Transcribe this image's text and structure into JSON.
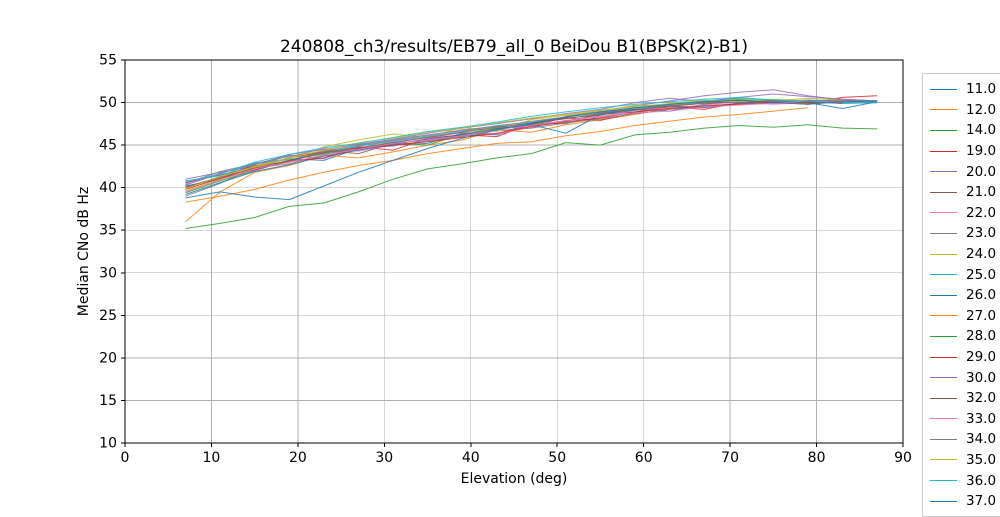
{
  "figure": {
    "background": "#ffffff",
    "grid_color": "#b0b0b0",
    "spine_color": "#000000"
  },
  "chart_data": {
    "type": "line",
    "title": "240808_ch3/results/EB79_all_0 BeiDou B1(BPSK(2)-B1)",
    "xlabel": "Elevation (deg)",
    "ylabel": "Median CNo dB Hz",
    "xlim": [
      0,
      90
    ],
    "ylim": [
      10,
      55
    ],
    "xticks": [
      0,
      10,
      20,
      30,
      40,
      50,
      60,
      70,
      80,
      90
    ],
    "yticks": [
      10,
      15,
      20,
      25,
      30,
      35,
      40,
      45,
      50,
      55
    ],
    "grid": true,
    "legend_position": "outside-right",
    "x": [
      7,
      11,
      15,
      19,
      23,
      27,
      31,
      35,
      39,
      43,
      47,
      51,
      55,
      59,
      63,
      67,
      71,
      75,
      79,
      83,
      87
    ],
    "series": [
      {
        "name": "11.0",
        "color": "#1f77b4",
        "values": [
          40.2,
          41.0,
          42.8,
          43.4,
          43.2,
          44.6,
          45.0,
          45.2,
          46.4,
          46.2,
          47.6,
          47.5,
          48.8,
          49.2,
          49.0,
          49.8,
          50.2,
          49.9,
          50.3,
          50.0,
          50.1
        ]
      },
      {
        "name": "12.0",
        "color": "#ff7f0e",
        "values": [
          36.0,
          39.5,
          41.8,
          42.6,
          43.8,
          43.5,
          44.2,
          45.0,
          45.6,
          46.8,
          46.5,
          47.4,
          48.0,
          48.6,
          49.3,
          49.5,
          49.8,
          50.2,
          49.9,
          50.4,
          50.2
        ]
      },
      {
        "name": "14.0",
        "color": "#2ca02c",
        "values": [
          39.4,
          40.8,
          42.0,
          43.2,
          44.0,
          44.5,
          45.3,
          45.0,
          46.3,
          47.0,
          47.4,
          48.2,
          48.5,
          49.4,
          49.6,
          50.0,
          50.4,
          50.1,
          49.8,
          50.2,
          50.0
        ]
      },
      {
        "name": "19.0",
        "color": "#d62728",
        "values": [
          40.6,
          41.5,
          42.4,
          43.5,
          44.2,
          44.8,
          44.4,
          45.8,
          46.2,
          46.0,
          47.5,
          48.2,
          47.9,
          48.8,
          49.5,
          49.2,
          50.0,
          50.3,
          49.8,
          50.6,
          50.8
        ]
      },
      {
        "name": "20.0",
        "color": "#9467bd",
        "values": [
          41.0,
          41.8,
          42.5,
          43.8,
          43.4,
          44.9,
          45.5,
          46.1,
          46.8,
          47.2,
          47.0,
          48.4,
          49.0,
          49.6,
          50.2,
          50.8,
          51.2,
          51.5,
          50.8,
          50.3,
          50.1
        ]
      },
      {
        "name": "21.0",
        "color": "#8c564b",
        "values": [
          40.0,
          41.3,
          42.6,
          43.0,
          44.4,
          44.0,
          45.2,
          45.6,
          46.0,
          46.9,
          47.3,
          47.8,
          48.6,
          48.9,
          49.5,
          50.0,
          50.3,
          50.0,
          50.2,
          49.9,
          50.0
        ]
      },
      {
        "name": "22.0",
        "color": "#e377c2",
        "values": [
          40.4,
          41.6,
          42.0,
          43.6,
          44.6,
          44.3,
          45.0,
          45.8,
          46.5,
          46.3,
          47.1,
          47.9,
          48.3,
          49.1,
          49.4,
          49.7,
          50.1,
          49.8,
          50.0,
          50.3,
          50.1
        ]
      },
      {
        "name": "23.0",
        "color": "#7f7f7f",
        "values": [
          39.0,
          40.5,
          42.3,
          42.8,
          43.9,
          44.7,
          44.9,
          45.5,
          46.1,
          46.7,
          47.0,
          47.6,
          48.1,
          48.7,
          49.2,
          49.6,
          49.9,
          50.1,
          50.0,
          50.2,
          50.1
        ]
      },
      {
        "name": "24.0",
        "color": "#bcbd22",
        "values": [
          39.6,
          41.0,
          42.4,
          43.4,
          44.8,
          45.6,
          46.3,
          45.9,
          47.1,
          46.6,
          48.0,
          48.5,
          49.0,
          49.7,
          49.5,
          50.1,
          50.4,
          50.2,
          50.5,
          50.3
        ]
      },
      {
        "name": "25.0",
        "color": "#17becf",
        "values": [
          40.8,
          41.4,
          42.9,
          43.3,
          44.1,
          44.9,
          45.4,
          46.0,
          46.6,
          47.3,
          47.7,
          48.3,
          48.9,
          49.3,
          49.8,
          50.2,
          50.5,
          50.3,
          50.1,
          49.9,
          50.0
        ]
      },
      {
        "name": "26.0",
        "color": "#1f77b4",
        "values": [
          39.2,
          40.6,
          41.9,
          42.7,
          43.7,
          44.4,
          45.1,
          45.7,
          46.2,
          46.9,
          47.4,
          46.4,
          48.6,
          49.1,
          49.6,
          49.4,
          49.9,
          50.2,
          50.0,
          49.3,
          50.1
        ]
      },
      {
        "name": "27.0",
        "color": "#ff7f0e",
        "values": [
          38.3,
          39.0,
          39.8,
          40.9,
          41.8,
          42.6,
          43.2,
          44.0,
          44.6,
          45.2,
          45.4,
          46.1,
          46.6,
          47.3,
          47.8,
          48.3,
          48.6,
          49.0,
          49.4
        ]
      },
      {
        "name": "28.0",
        "color": "#2ca02c",
        "values": [
          35.2,
          35.8,
          36.5,
          37.8,
          38.2,
          39.5,
          41.0,
          42.2,
          42.8,
          43.5,
          44.0,
          45.3,
          45.0,
          46.2,
          46.5,
          47.0,
          47.3,
          47.1,
          47.4,
          47.0,
          46.9
        ]
      },
      {
        "name": "29.0",
        "color": "#d62728",
        "values": [
          39.8,
          41.1,
          42.1,
          43.1,
          43.5,
          44.6,
          45.0,
          45.4,
          45.9,
          46.4,
          47.2,
          47.7,
          48.2,
          48.9,
          49.3,
          49.6,
          49.8,
          50.0,
          50.1,
          49.9
        ]
      },
      {
        "name": "30.0",
        "color": "#9467bd",
        "values": [
          40.3,
          41.7,
          42.7,
          43.9,
          44.5,
          45.1,
          45.7,
          46.4,
          47.0,
          47.5,
          48.1,
          48.7,
          49.2,
          50.0,
          50.5,
          50.1,
          50.6,
          51.0,
          50.7,
          50.4,
          50.2
        ]
      },
      {
        "name": "32.0",
        "color": "#8c564b",
        "values": [
          40.1,
          41.2,
          42.3,
          43.2,
          44.1,
          44.7,
          45.3,
          45.9,
          46.5,
          47.1,
          47.6,
          48.1,
          48.7,
          49.2,
          49.6,
          49.9,
          50.1,
          50.2,
          50.0,
          50.1
        ]
      },
      {
        "name": "33.0",
        "color": "#e377c2",
        "values": [
          39.5,
          40.9,
          42.2,
          43.0,
          43.8,
          44.5,
          45.2,
          45.6,
          46.1,
          46.8,
          47.3,
          47.9,
          48.4,
          48.8,
          49.0,
          49.5,
          49.7,
          49.9,
          50.2,
          50.0,
          50.1
        ]
      },
      {
        "name": "34.0",
        "color": "#7f7f7f",
        "values": [
          40.5,
          41.9,
          42.8,
          43.7,
          44.3,
          45.0,
          45.6,
          46.2,
          46.7,
          47.2,
          47.8,
          48.3,
          48.8,
          49.4,
          49.7,
          50.0,
          50.2,
          50.1,
          50.3,
          50.2,
          50.2
        ]
      },
      {
        "name": "35.0",
        "color": "#bcbd22",
        "values": [
          39.9,
          41.3,
          42.5,
          43.5,
          44.4,
          45.3,
          45.8,
          46.5,
          47.0,
          47.6,
          48.2,
          48.6,
          49.1,
          49.5,
          49.9,
          50.3,
          50.1,
          50.4,
          50.2
        ]
      },
      {
        "name": "36.0",
        "color": "#17becf",
        "values": [
          40.7,
          41.6,
          43.0,
          43.9,
          44.7,
          45.2,
          45.9,
          46.6,
          47.1,
          47.7,
          48.4,
          48.9,
          49.4,
          49.8,
          50.1,
          50.4,
          50.6,
          50.3,
          50.2,
          50.0,
          50.1
        ]
      },
      {
        "name": "37.0",
        "color": "#1f77b4",
        "values": [
          38.8,
          39.5,
          38.9,
          38.6,
          40.2,
          41.8,
          43.2,
          44.6,
          45.8,
          46.8,
          47.6,
          48.3,
          48.9,
          49.4,
          49.8,
          50.1,
          50.3,
          50.0,
          49.8,
          50.1,
          50.2
        ]
      }
    ]
  }
}
